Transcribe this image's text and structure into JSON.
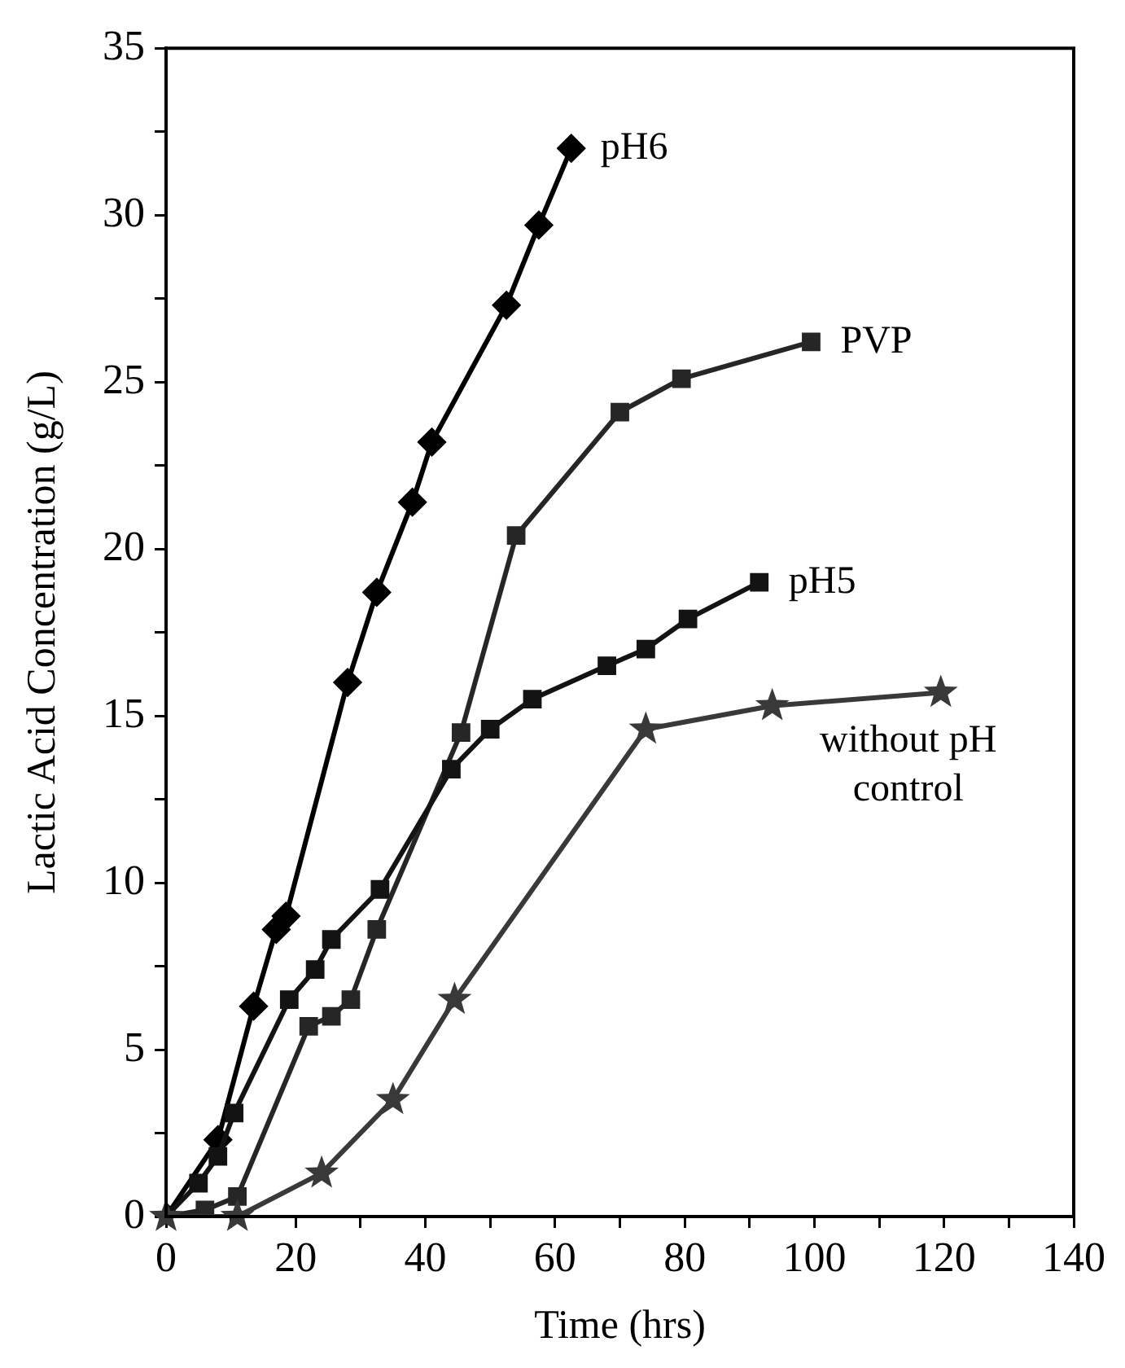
{
  "chart_data": {
    "type": "line",
    "xlabel": "Time (hrs)",
    "ylabel": "Lactic Acid Concentration (g/L)",
    "xlim": [
      0,
      140
    ],
    "ylim": [
      0,
      35
    ],
    "xticks": [
      0,
      {
        "value": 10,
        "label": null
      },
      20,
      {
        "value": 30,
        "label": null
      },
      40,
      {
        "value": 50,
        "label": null
      },
      60,
      {
        "value": 70,
        "label": null
      },
      80,
      {
        "value": 90,
        "label": null
      },
      100,
      {
        "value": 110,
        "label": null
      },
      120,
      {
        "value": 130,
        "label": null
      },
      140
    ],
    "yticks": [
      0,
      {
        "value": 2.5,
        "label": null
      },
      5,
      {
        "value": 7.5,
        "label": null
      },
      10,
      {
        "value": 12.5,
        "label": null
      },
      15,
      {
        "value": 17.5,
        "label": null
      },
      20,
      {
        "value": 22.5,
        "label": null
      },
      25,
      {
        "value": 27.5,
        "label": null
      },
      30,
      {
        "value": 32.5,
        "label": null
      },
      35
    ],
    "grid": false,
    "legend": false,
    "line_style": "solid",
    "series": [
      {
        "name": "pH6",
        "color": "#000000",
        "marker": "diamond",
        "x": [
          0,
          8,
          13.5,
          17,
          18.5,
          28,
          32.5,
          38,
          41,
          52.5,
          57.5,
          62.5
        ],
        "values": [
          0,
          2.3,
          6.3,
          8.6,
          9.0,
          16,
          18.7,
          21.4,
          23.2,
          27.3,
          29.7,
          32
        ]
      },
      {
        "name": "PVP",
        "color": "#262626",
        "marker": "square",
        "x": [
          0,
          6,
          11,
          22,
          25.5,
          28.5,
          32.5,
          45.5,
          54,
          70,
          79.5,
          99.5
        ],
        "values": [
          0,
          0.2,
          0.6,
          5.7,
          6,
          6.5,
          8.6,
          14.5,
          20.4,
          24.1,
          25.1,
          26.2
        ]
      },
      {
        "name": "pH5",
        "color": "#131313",
        "marker": "square",
        "x": [
          0,
          5,
          8,
          10.5,
          19,
          23,
          25.5,
          33,
          44,
          50,
          56.5,
          68,
          74,
          80.5,
          91.5
        ],
        "values": [
          0,
          1,
          1.8,
          3.1,
          6.5,
          7.4,
          8.3,
          9.8,
          13.4,
          14.6,
          15.5,
          16.5,
          17,
          17.9,
          19
        ]
      },
      {
        "name": "without pH control",
        "color": "#393939",
        "marker": "star",
        "x": [
          0,
          11,
          24,
          35,
          44.5,
          74,
          93.5,
          119.5
        ],
        "values": [
          0,
          0,
          1.3,
          3.5,
          6.5,
          14.6,
          15.3,
          15.7
        ]
      }
    ]
  }
}
